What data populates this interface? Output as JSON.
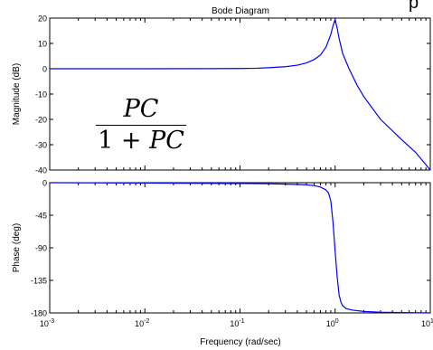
{
  "chart_data": [
    {
      "type": "line",
      "title": "Bode Diagram",
      "xlabel": "Frequency  (rad/sec)",
      "ylabel": "Magnitude (dB)",
      "xscale": "log",
      "xlim": [
        0.001,
        10
      ],
      "ylim": [
        -40,
        20
      ],
      "yticks": [
        "20",
        "10",
        "0",
        "-10",
        "-20",
        "-30",
        "-40"
      ],
      "xticks": [],
      "grid": false,
      "color": "#0000ff",
      "annotation": {
        "numerator": "PC",
        "denominator_const": "1 + ",
        "denominator_var": "PC"
      },
      "series": [
        {
          "x": [
            0.001,
            0.01,
            0.05,
            0.1,
            0.15,
            0.2,
            0.3,
            0.4,
            0.5,
            0.6,
            0.7,
            0.8,
            0.9,
            0.95,
            1.0,
            1.05,
            1.1,
            1.2,
            1.4,
            1.7,
            2,
            3,
            5,
            7,
            10
          ],
          "y": [
            0,
            0,
            0.05,
            0.1,
            0.2,
            0.4,
            0.8,
            1.4,
            2.3,
            3.6,
            5.4,
            8.5,
            13.5,
            17,
            19.5,
            16,
            12,
            6,
            0,
            -6.5,
            -11,
            -20,
            -28,
            -33,
            -40
          ]
        }
      ]
    },
    {
      "type": "line",
      "xlabel": "Frequency  (rad/sec)",
      "ylabel": "Phase (deg)",
      "xscale": "log",
      "xlim": [
        0.001,
        10
      ],
      "ylim": [
        -180,
        0
      ],
      "yticks": [
        "0",
        "-45",
        "-90",
        "-135",
        "-180"
      ],
      "xticks": [
        "10-3",
        "10-2",
        "10-1",
        "100",
        "101"
      ],
      "grid": false,
      "color": "#0000ff",
      "series": [
        {
          "x": [
            0.001,
            0.01,
            0.05,
            0.1,
            0.2,
            0.3,
            0.4,
            0.5,
            0.6,
            0.7,
            0.8,
            0.85,
            0.9,
            0.95,
            1.0,
            1.05,
            1.1,
            1.15,
            1.2,
            1.3,
            1.5,
            2,
            3,
            5,
            10
          ],
          "y": [
            0,
            -0.5,
            -1,
            -1.2,
            -1.5,
            -2,
            -2.5,
            -3,
            -4,
            -6,
            -10,
            -14,
            -25,
            -55,
            -95,
            -130,
            -155,
            -165,
            -170,
            -174,
            -176,
            -178,
            -179,
            -179.5,
            -180
          ]
        }
      ]
    }
  ],
  "corner_text": "p"
}
